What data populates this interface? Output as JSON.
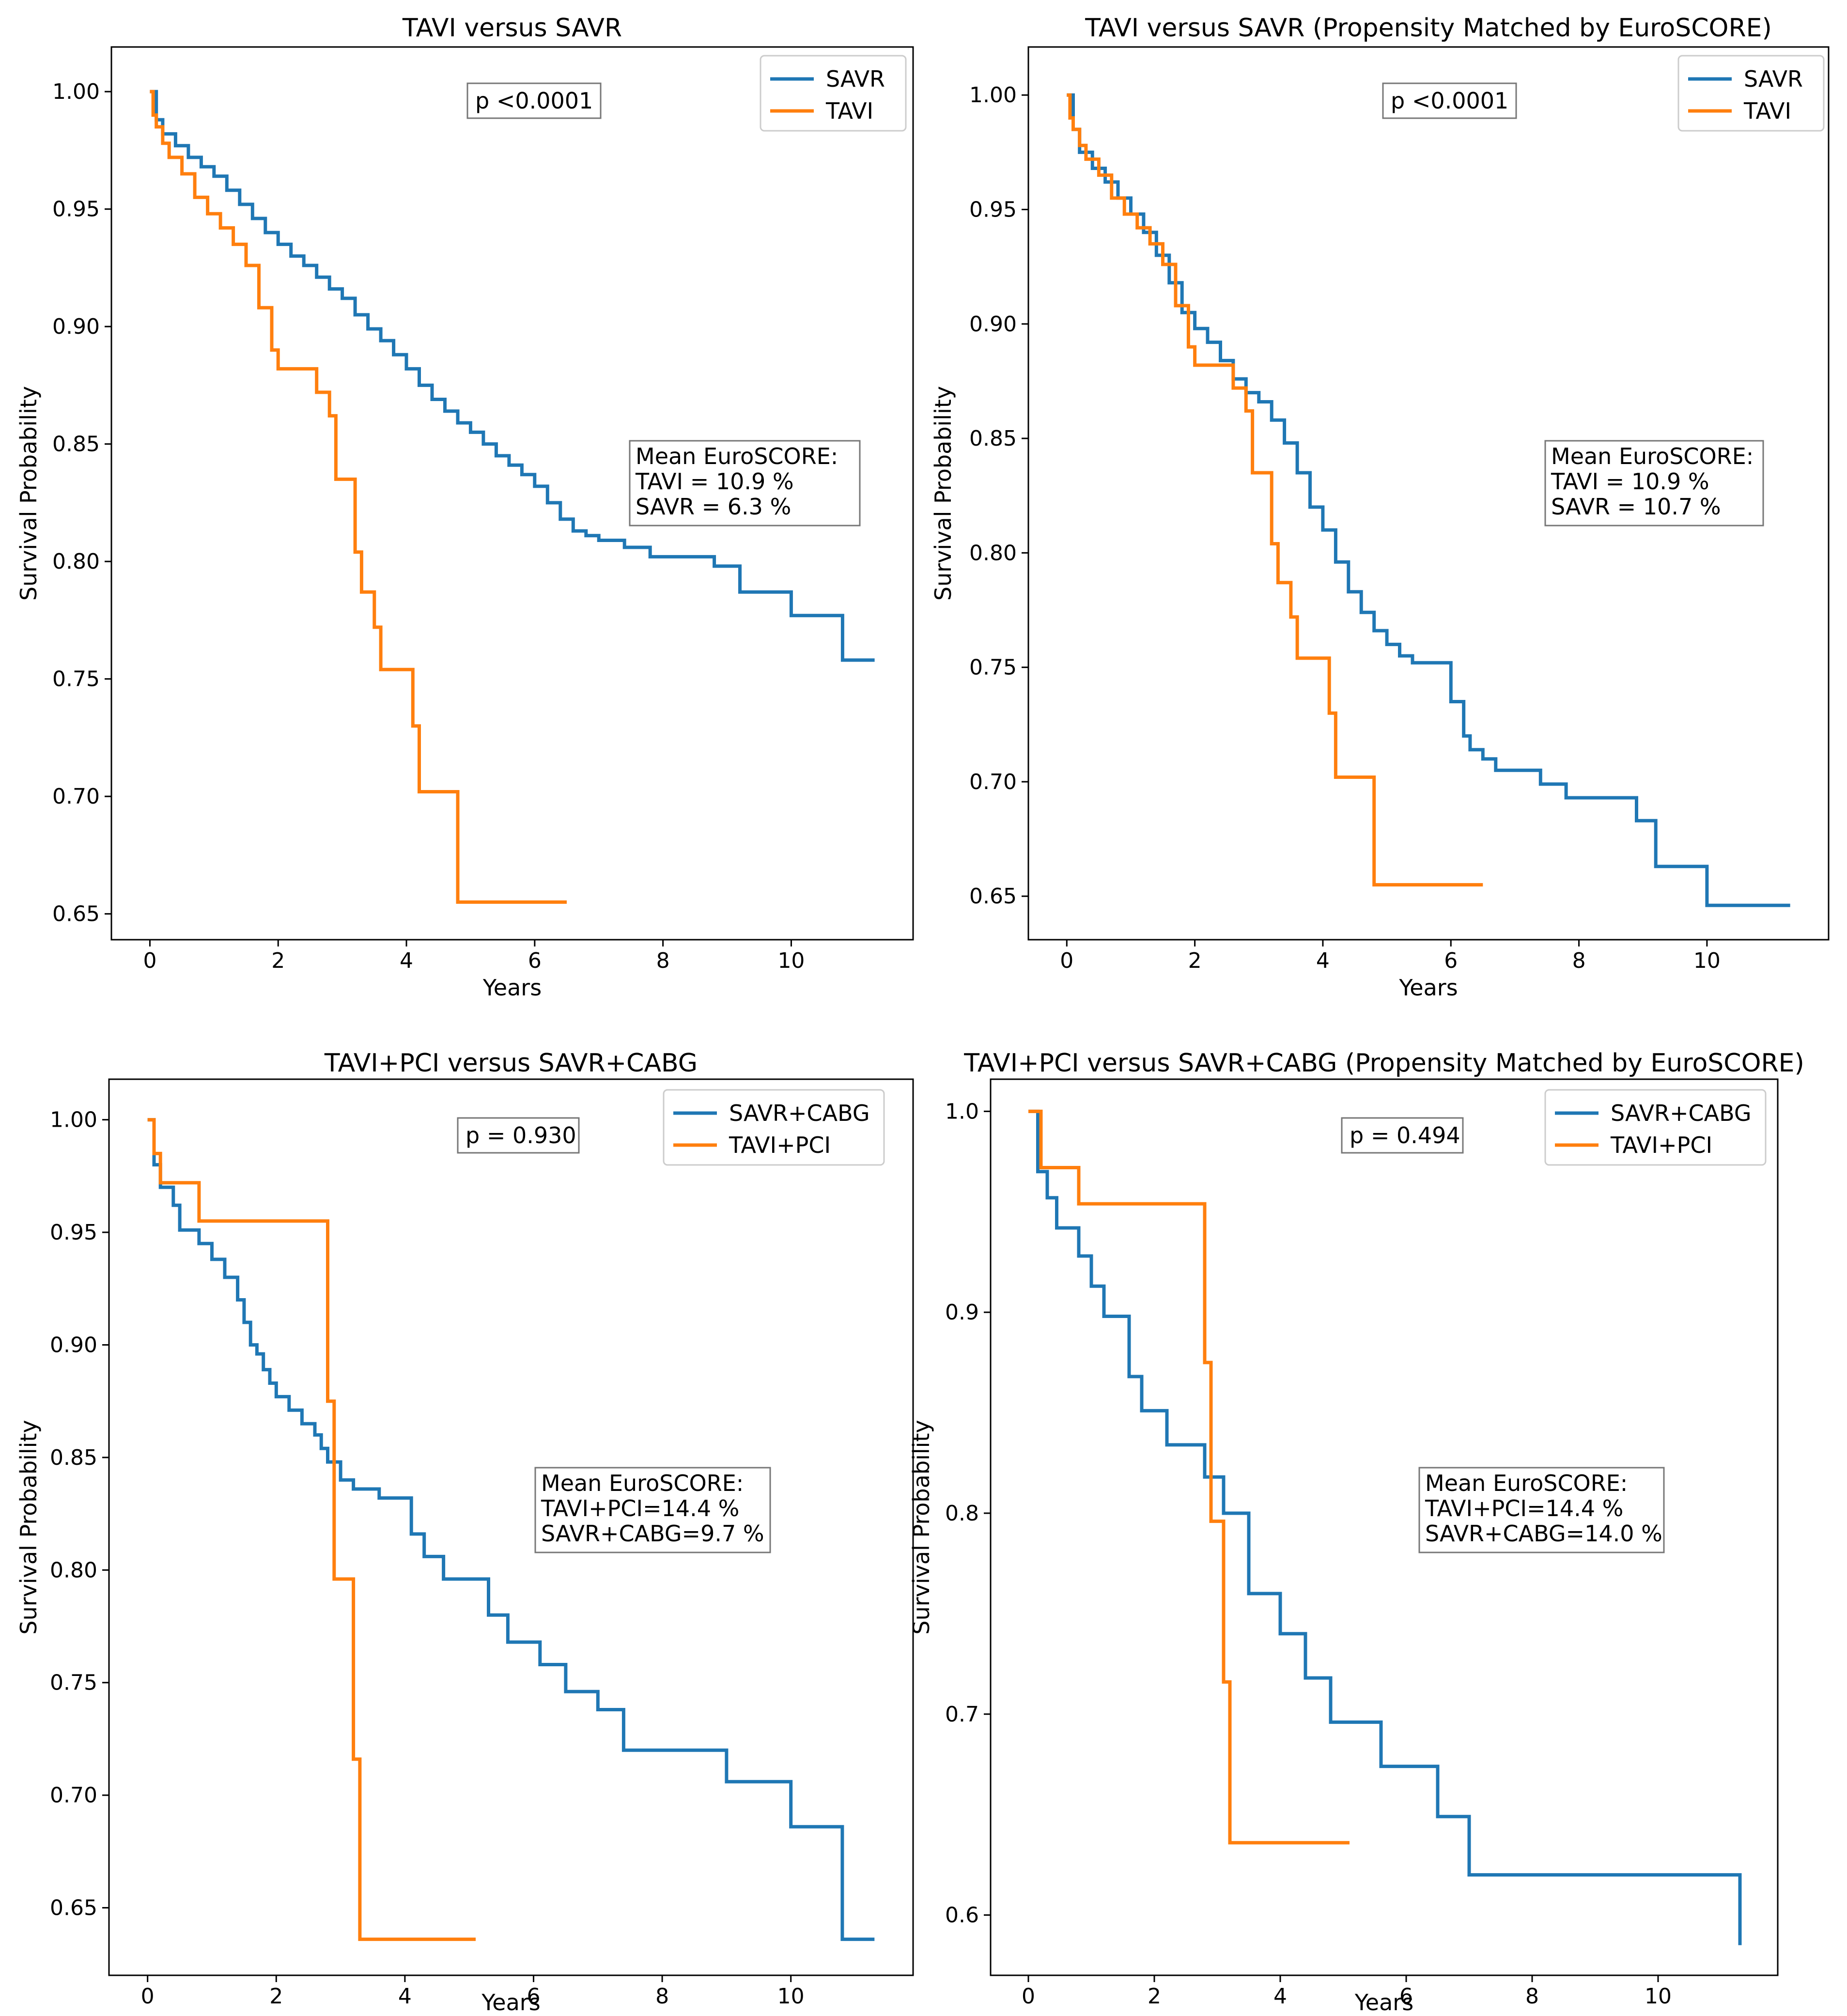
{
  "chart_data": [
    {
      "type": "line",
      "step": true,
      "title": "TAVI versus SAVR",
      "xlabel": "Years",
      "ylabel": "Survival Probability",
      "xlim": [
        -0.6,
        11.9
      ],
      "ylim": [
        0.639,
        1.019
      ],
      "xticks": [
        0,
        2,
        4,
        6,
        8,
        10
      ],
      "xtick_labels": [
        "0",
        "2",
        "4",
        "6",
        "8",
        "10"
      ],
      "yticks": [
        0.65,
        0.7,
        0.75,
        0.8,
        0.85,
        0.9,
        0.95,
        1.0
      ],
      "ytick_labels": [
        "0.65",
        "0.70",
        "0.75",
        "0.80",
        "0.85",
        "0.90",
        "0.95",
        "1.00"
      ],
      "legend_position": "top-right",
      "p_text": "p <0.0001",
      "euro_lines": [
        "Mean EuroSCORE:",
        "TAVI = 10.9 %",
        "SAVR = 6.3 %"
      ],
      "series": [
        {
          "name": "SAVR",
          "color": "#1f77b4",
          "x": [
            0,
            0.1,
            0.2,
            0.4,
            0.6,
            0.8,
            1.0,
            1.2,
            1.4,
            1.6,
            1.8,
            2.0,
            2.2,
            2.4,
            2.6,
            2.8,
            3.0,
            3.2,
            3.4,
            3.6,
            3.8,
            4.0,
            4.2,
            4.4,
            4.6,
            4.8,
            5.0,
            5.2,
            5.4,
            5.6,
            5.8,
            6.0,
            6.2,
            6.4,
            6.6,
            6.8,
            7.0,
            7.4,
            7.8,
            8.2,
            8.8,
            9.2,
            9.6,
            10.0,
            10.8,
            11.3
          ],
          "y": [
            1.0,
            0.988,
            0.982,
            0.977,
            0.972,
            0.968,
            0.964,
            0.958,
            0.952,
            0.946,
            0.94,
            0.935,
            0.93,
            0.926,
            0.921,
            0.916,
            0.912,
            0.905,
            0.899,
            0.894,
            0.888,
            0.882,
            0.875,
            0.869,
            0.864,
            0.859,
            0.855,
            0.85,
            0.845,
            0.841,
            0.837,
            0.832,
            0.825,
            0.818,
            0.813,
            0.811,
            0.809,
            0.806,
            0.802,
            0.802,
            0.798,
            0.787,
            0.787,
            0.777,
            0.758,
            0.758
          ]
        },
        {
          "name": "TAVI",
          "color": "#ff7f0e",
          "x": [
            0,
            0.05,
            0.1,
            0.2,
            0.3,
            0.5,
            0.7,
            0.9,
            1.1,
            1.3,
            1.5,
            1.7,
            1.9,
            2.0,
            2.6,
            2.8,
            2.9,
            3.2,
            3.3,
            3.5,
            3.6,
            4.1,
            4.2,
            4.8,
            6.5
          ],
          "y": [
            1.0,
            0.99,
            0.985,
            0.978,
            0.972,
            0.965,
            0.955,
            0.948,
            0.942,
            0.935,
            0.926,
            0.908,
            0.89,
            0.882,
            0.872,
            0.862,
            0.835,
            0.804,
            0.787,
            0.772,
            0.754,
            0.73,
            0.702,
            0.655,
            0.655
          ]
        }
      ]
    },
    {
      "type": "line",
      "step": true,
      "title": "TAVI versus SAVR (Propensity Matched by EuroSCORE)",
      "xlabel": "Years",
      "ylabel": "Survival Probability",
      "xlim": [
        -0.6,
        11.9
      ],
      "ylim": [
        0.631,
        1.021
      ],
      "xticks": [
        0,
        2,
        4,
        6,
        8,
        10
      ],
      "xtick_labels": [
        "0",
        "2",
        "4",
        "6",
        "8",
        "10"
      ],
      "yticks": [
        0.65,
        0.7,
        0.75,
        0.8,
        0.85,
        0.9,
        0.95,
        1.0
      ],
      "ytick_labels": [
        "0.65",
        "0.70",
        "0.75",
        "0.80",
        "0.85",
        "0.90",
        "0.95",
        "1.00"
      ],
      "legend_position": "top-right",
      "p_text": "p <0.0001",
      "euro_lines": [
        "Mean EuroSCORE:",
        "TAVI = 10.9 %",
        "SAVR = 10.7 %"
      ],
      "series": [
        {
          "name": "SAVR",
          "color": "#1f77b4",
          "x": [
            0,
            0.1,
            0.2,
            0.4,
            0.6,
            0.8,
            1.0,
            1.2,
            1.4,
            1.6,
            1.8,
            2.0,
            2.2,
            2.4,
            2.6,
            2.8,
            3.0,
            3.2,
            3.4,
            3.6,
            3.8,
            4.0,
            4.2,
            4.4,
            4.6,
            4.8,
            5.0,
            5.2,
            5.4,
            5.6,
            5.8,
            6.0,
            6.2,
            6.3,
            6.5,
            6.7,
            7.0,
            7.4,
            7.8,
            8.1,
            8.9,
            9.2,
            10.0,
            11.3
          ],
          "y": [
            1.0,
            0.985,
            0.975,
            0.968,
            0.962,
            0.955,
            0.948,
            0.94,
            0.93,
            0.918,
            0.905,
            0.898,
            0.892,
            0.884,
            0.876,
            0.87,
            0.866,
            0.858,
            0.848,
            0.835,
            0.82,
            0.81,
            0.796,
            0.783,
            0.774,
            0.766,
            0.76,
            0.755,
            0.752,
            0.752,
            0.752,
            0.735,
            0.72,
            0.714,
            0.71,
            0.705,
            0.705,
            0.699,
            0.693,
            0.693,
            0.683,
            0.663,
            0.646,
            0.646
          ]
        },
        {
          "name": "TAVI",
          "color": "#ff7f0e",
          "x": [
            0,
            0.05,
            0.1,
            0.2,
            0.3,
            0.5,
            0.7,
            0.9,
            1.1,
            1.3,
            1.5,
            1.7,
            1.9,
            2.0,
            2.6,
            2.8,
            2.9,
            3.2,
            3.3,
            3.5,
            3.6,
            4.1,
            4.2,
            4.8,
            6.5
          ],
          "y": [
            1.0,
            0.99,
            0.985,
            0.978,
            0.972,
            0.965,
            0.955,
            0.948,
            0.942,
            0.935,
            0.926,
            0.908,
            0.89,
            0.882,
            0.872,
            0.862,
            0.835,
            0.804,
            0.787,
            0.772,
            0.754,
            0.73,
            0.702,
            0.655,
            0.655
          ]
        }
      ]
    },
    {
      "type": "line",
      "step": true,
      "title": "TAVI+PCI versus SAVR+CABG",
      "xlabel": "Years",
      "ylabel": "Survival Probability",
      "xlim": [
        -0.6,
        11.9
      ],
      "ylim": [
        0.62,
        1.018
      ],
      "xticks": [
        0,
        2,
        4,
        6,
        8,
        10
      ],
      "xtick_labels": [
        "0",
        "2",
        "4",
        "6",
        "8",
        "10"
      ],
      "yticks": [
        0.65,
        0.7,
        0.75,
        0.8,
        0.85,
        0.9,
        0.95,
        1.0
      ],
      "ytick_labels": [
        "0.65",
        "0.70",
        "0.75",
        "0.80",
        "0.85",
        "0.90",
        "0.95",
        "1.00"
      ],
      "legend_position": "top-right",
      "p_text": "p = 0.930",
      "euro_lines": [
        "Mean EuroSCORE:",
        "TAVI+PCI=14.4 %",
        "SAVR+CABG=9.7 %"
      ],
      "series": [
        {
          "name": "SAVR+CABG",
          "color": "#1f77b4",
          "x": [
            0,
            0.1,
            0.2,
            0.4,
            0.5,
            0.8,
            1.0,
            1.2,
            1.4,
            1.5,
            1.6,
            1.7,
            1.8,
            1.9,
            2.0,
            2.2,
            2.4,
            2.6,
            2.7,
            2.8,
            3.0,
            3.2,
            3.6,
            4.1,
            4.3,
            4.6,
            4.9,
            5.3,
            5.6,
            6.1,
            6.5,
            7.0,
            7.4,
            9.0,
            10.0,
            10.8,
            11.3
          ],
          "y": [
            1.0,
            0.98,
            0.97,
            0.962,
            0.951,
            0.945,
            0.938,
            0.93,
            0.92,
            0.91,
            0.9,
            0.896,
            0.889,
            0.883,
            0.877,
            0.871,
            0.865,
            0.86,
            0.854,
            0.848,
            0.84,
            0.836,
            0.832,
            0.816,
            0.806,
            0.796,
            0.796,
            0.78,
            0.768,
            0.758,
            0.746,
            0.738,
            0.72,
            0.706,
            0.686,
            0.636,
            0.636
          ]
        },
        {
          "name": "TAVI+PCI",
          "color": "#ff7f0e",
          "x": [
            0,
            0.1,
            0.2,
            0.8,
            2.8,
            2.9,
            3.2,
            3.3,
            5.1
          ],
          "y": [
            1.0,
            0.985,
            0.972,
            0.955,
            0.875,
            0.796,
            0.716,
            0.636,
            0.636
          ]
        }
      ]
    },
    {
      "type": "line",
      "step": true,
      "title": "TAVI+PCI versus SAVR+CABG (Propensity Matched by EuroSCORE)",
      "xlabel": "Years",
      "ylabel": "Survival Probability",
      "xlim": [
        -0.6,
        11.9
      ],
      "ylim": [
        0.57,
        1.016
      ],
      "xticks": [
        0,
        2,
        4,
        6,
        8,
        10
      ],
      "xtick_labels": [
        "0",
        "2",
        "4",
        "6",
        "8",
        "10"
      ],
      "yticks": [
        0.6,
        0.7,
        0.8,
        0.9,
        1.0
      ],
      "ytick_labels": [
        "0.6",
        "0.7",
        "0.8",
        "0.9",
        "1.0"
      ],
      "legend_position": "top-right",
      "p_text": "p = 0.494",
      "euro_lines": [
        "Mean EuroSCORE:",
        "TAVI+PCI=14.4 %",
        "SAVR+CABG=14.0 %"
      ],
      "series": [
        {
          "name": "SAVR+CABG",
          "color": "#1f77b4",
          "x": [
            0,
            0.15,
            0.3,
            0.45,
            0.8,
            1.0,
            1.2,
            1.6,
            1.8,
            2.2,
            2.8,
            3.1,
            3.5,
            4.0,
            4.4,
            4.8,
            5.6,
            6.5,
            7.0,
            11.3
          ],
          "y": [
            1.0,
            0.97,
            0.957,
            0.942,
            0.928,
            0.913,
            0.898,
            0.868,
            0.851,
            0.834,
            0.818,
            0.8,
            0.76,
            0.74,
            0.718,
            0.696,
            0.674,
            0.649,
            0.62,
            0.585
          ]
        },
        {
          "name": "TAVI+PCI",
          "color": "#ff7f0e",
          "x": [
            0,
            0.2,
            0.8,
            2.8,
            2.9,
            3.1,
            3.2,
            3.3,
            5.1
          ],
          "y": [
            1.0,
            0.972,
            0.954,
            0.875,
            0.796,
            0.716,
            0.636,
            0.636,
            0.636
          ]
        }
      ]
    }
  ]
}
